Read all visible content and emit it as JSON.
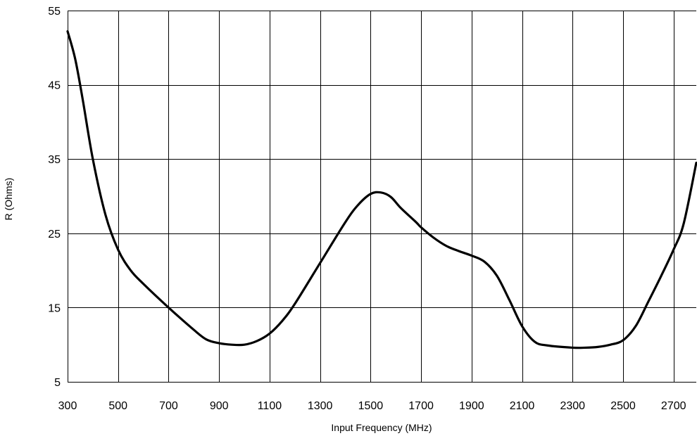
{
  "chart_data": {
    "type": "line",
    "title": "",
    "xlabel": "Input Frequency (MHz)",
    "ylabel": "R (Ohms)",
    "xlim": [
      300,
      2790
    ],
    "ylim": [
      5,
      55
    ],
    "x_ticks": [
      300,
      500,
      700,
      900,
      1100,
      1300,
      1500,
      1700,
      1900,
      2100,
      2300,
      2500,
      2700
    ],
    "y_ticks": [
      5,
      15,
      25,
      35,
      45,
      55
    ],
    "x_tick_labels": [
      "300",
      "500",
      "700",
      "900",
      "1100",
      "1300",
      "1500",
      "1700",
      "1900",
      "2100",
      "2300",
      "2500",
      "2700"
    ],
    "y_tick_labels": [
      "5",
      "15",
      "25",
      "35",
      "45",
      "55"
    ],
    "grid": true,
    "legend": "none",
    "series": [
      {
        "color": "#000000",
        "x": [
          300,
          330,
          360,
          400,
          450,
          500,
          550,
          600,
          700,
          800,
          850,
          900,
          950,
          1000,
          1050,
          1100,
          1150,
          1200,
          1300,
          1400,
          1450,
          1500,
          1540,
          1580,
          1620,
          1680,
          1700,
          1750,
          1800,
          1850,
          1900,
          1950,
          2000,
          2050,
          2100,
          2150,
          2200,
          2300,
          2350,
          2400,
          2450,
          2500,
          2550,
          2600,
          2650,
          2700,
          2740,
          2790
        ],
        "y": [
          52.2,
          48.5,
          43,
          35,
          27.5,
          22.8,
          20,
          18.2,
          15,
          12,
          10.7,
          10.2,
          10.0,
          10.0,
          10.5,
          11.5,
          13.2,
          15.5,
          21,
          26.5,
          28.8,
          30.3,
          30.5,
          29.9,
          28.4,
          26.5,
          25.8,
          24.4,
          23.3,
          22.6,
          22.0,
          21.2,
          19.3,
          16.0,
          12.5,
          10.4,
          9.9,
          9.6,
          9.6,
          9.7,
          10.0,
          10.6,
          12.5,
          15.8,
          19.2,
          22.8,
          26.3,
          34.5
        ]
      }
    ]
  }
}
